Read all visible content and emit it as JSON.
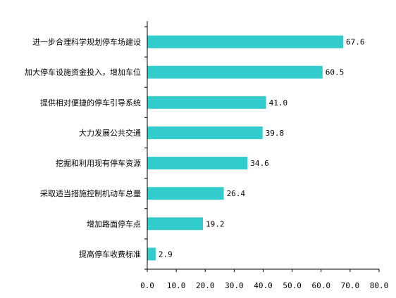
{
  "chart_data": {
    "type": "bar",
    "orientation": "horizontal",
    "categories": [
      "进一步合理科学规划停车场建设",
      "加大停车设施资金投入，增加车位",
      "提供相对便捷的停车引导系统",
      "大力发展公共交通",
      "挖掘和利用现有停车资源",
      "采取适当措施控制机动车总量",
      "增加路面停车点",
      "提高停车收费标准"
    ],
    "values": [
      67.6,
      60.5,
      41.0,
      39.8,
      34.6,
      26.4,
      19.2,
      2.9
    ],
    "value_labels": [
      "67.6",
      "60.5",
      "41.0",
      "39.8",
      "34.6",
      "26.4",
      "19.2",
      "2.9"
    ],
    "xlim": [
      0,
      80
    ],
    "xticks": [
      "0.0",
      "10.0",
      "20.0",
      "30.0",
      "40.0",
      "50.0",
      "60.0",
      "70.0",
      "80.0"
    ],
    "grid": false,
    "legend": "none",
    "bar_color": "#33cccc",
    "title": "",
    "xlabel": "",
    "ylabel": ""
  }
}
